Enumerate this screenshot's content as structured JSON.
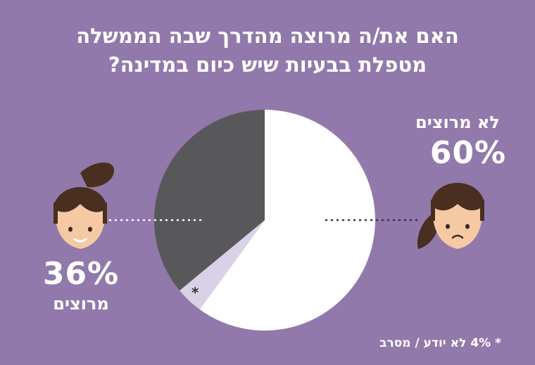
{
  "title_lines": [
    "האם את/ה מרוצה מהדרך שבה הממשלה",
    "מטפלת בבעיות שיש כיום במדינה?"
  ],
  "chart_data": {
    "type": "pie",
    "title": "האם את/ה מרוצה מהדרך שבה הממשלה מטפלת בבעיות שיש כיום במדינה?",
    "slices": [
      {
        "label": "לא מרוצים",
        "value": 60,
        "display": "60%",
        "color": "#ffffff"
      },
      {
        "label": "לא יודע / מסרב",
        "value": 4,
        "display": "4%",
        "color": "#d9d1e6"
      },
      {
        "label": "מרוצים",
        "value": 36,
        "display": "36%",
        "color": "#58585a"
      }
    ],
    "footnote": "* 4% לא יודע / מסרב",
    "star": "*"
  },
  "colors": {
    "background": "#9179ab",
    "hair": "#4a2e1f",
    "skin": "#f4c9a4"
  }
}
